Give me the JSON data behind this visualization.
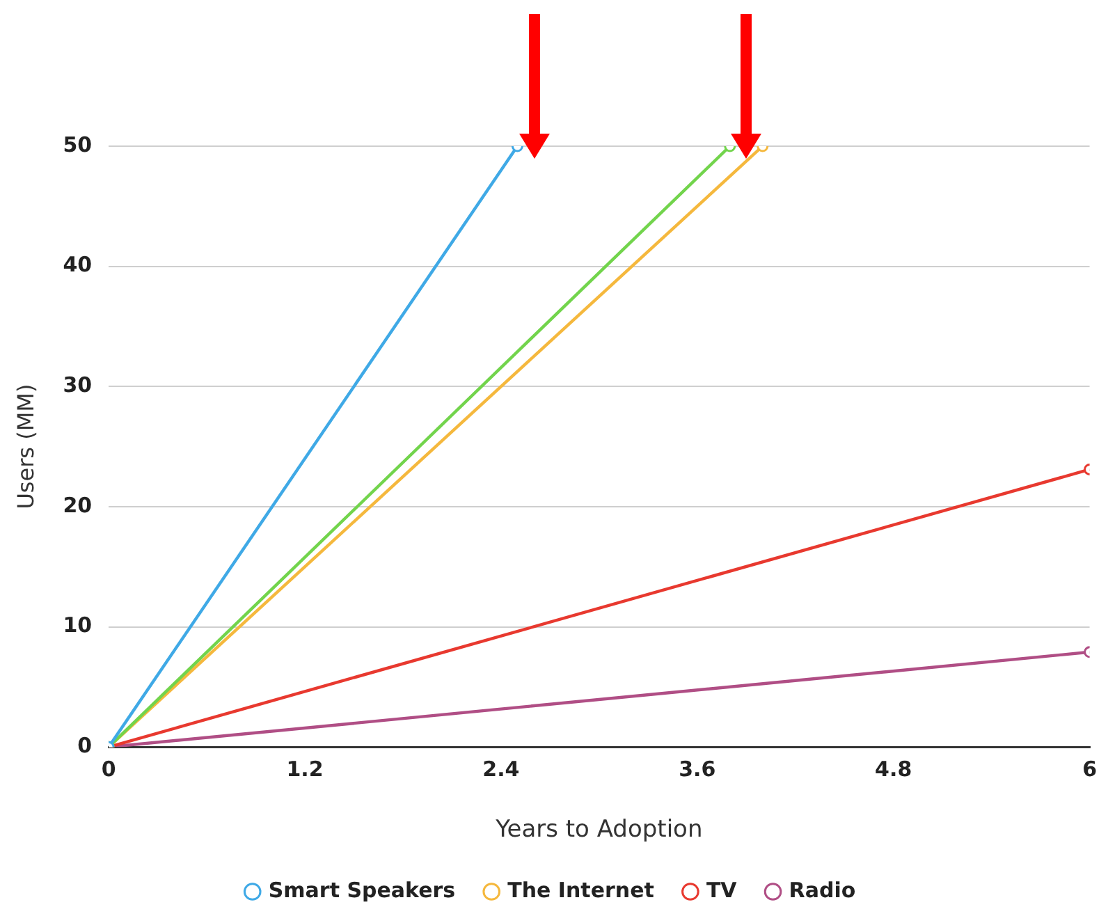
{
  "chart_data": {
    "type": "line",
    "xlabel": "Years to Adoption",
    "ylabel": "Users (MM)",
    "xlim": [
      0,
      6
    ],
    "xticks": [
      0,
      1.2,
      2.4,
      3.6,
      4.8,
      6
    ],
    "ylim": [
      0,
      50
    ],
    "yticks": [
      0,
      10,
      20,
      30,
      40,
      50
    ],
    "grid": "y",
    "legend": "bottom",
    "marker": "circle",
    "line_style": "solid",
    "series": [
      {
        "name": "Smart Speakers",
        "color": "#3fa9e6",
        "x": [
          0,
          2.5
        ],
        "values": [
          0,
          50
        ]
      },
      {
        "color": "#72d44c",
        "x": [
          0,
          3.8
        ],
        "values": [
          0,
          50
        ]
      },
      {
        "name": "The Internet",
        "color": "#f5b83d",
        "x": [
          0,
          4
        ],
        "values": [
          0,
          50
        ]
      },
      {
        "name": "TV",
        "color": "#e8392f",
        "x": [
          0,
          6
        ],
        "values": [
          0,
          23.1
        ]
      },
      {
        "name": "Radio",
        "color": "#b04e85",
        "x": [
          0,
          6
        ],
        "values": [
          0,
          7.9
        ]
      }
    ]
  }
}
